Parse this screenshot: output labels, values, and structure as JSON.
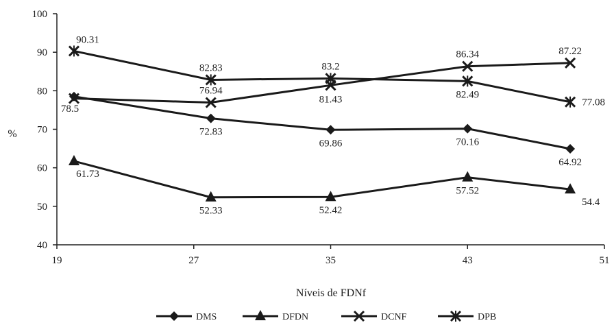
{
  "chart_data": {
    "type": "line",
    "title": "",
    "xlabel": "Níveis de FDNf",
    "ylabel": "%",
    "xlim": [
      19,
      51
    ],
    "ylim": [
      40,
      100
    ],
    "x_ticks": [
      19,
      27,
      35,
      43,
      51
    ],
    "y_ticks": [
      40,
      50,
      60,
      70,
      80,
      90,
      100
    ],
    "x": [
      20,
      28,
      35,
      43,
      49
    ],
    "grid": false,
    "legend_position": "bottom",
    "series": [
      {
        "name": "DMS",
        "marker": "diamond",
        "values": [
          78.5,
          72.83,
          69.86,
          70.16,
          64.92
        ],
        "labels": [
          "78.5",
          "72.83",
          "69.86",
          "70.16",
          "64.92"
        ]
      },
      {
        "name": "DFDN",
        "marker": "triangle",
        "values": [
          61.73,
          52.33,
          52.42,
          57.52,
          54.4
        ],
        "labels": [
          "61.73",
          "52.33",
          "52.42",
          "57.52",
          "54.4"
        ]
      },
      {
        "name": "DCNF",
        "marker": "x",
        "values": [
          78.0,
          76.94,
          81.43,
          86.34,
          87.22
        ],
        "labels": [
          "",
          "76.94",
          "81.43",
          "86.34",
          "87.22"
        ]
      },
      {
        "name": "DPB",
        "marker": "star",
        "values": [
          90.31,
          82.83,
          83.2,
          82.49,
          77.08
        ],
        "labels": [
          "90.31",
          "82.83",
          "83.2",
          "82.49",
          "77.08"
        ]
      }
    ],
    "colors": {
      "line": "#1a1a1a",
      "axis": "#222222",
      "text": "#222222"
    }
  }
}
